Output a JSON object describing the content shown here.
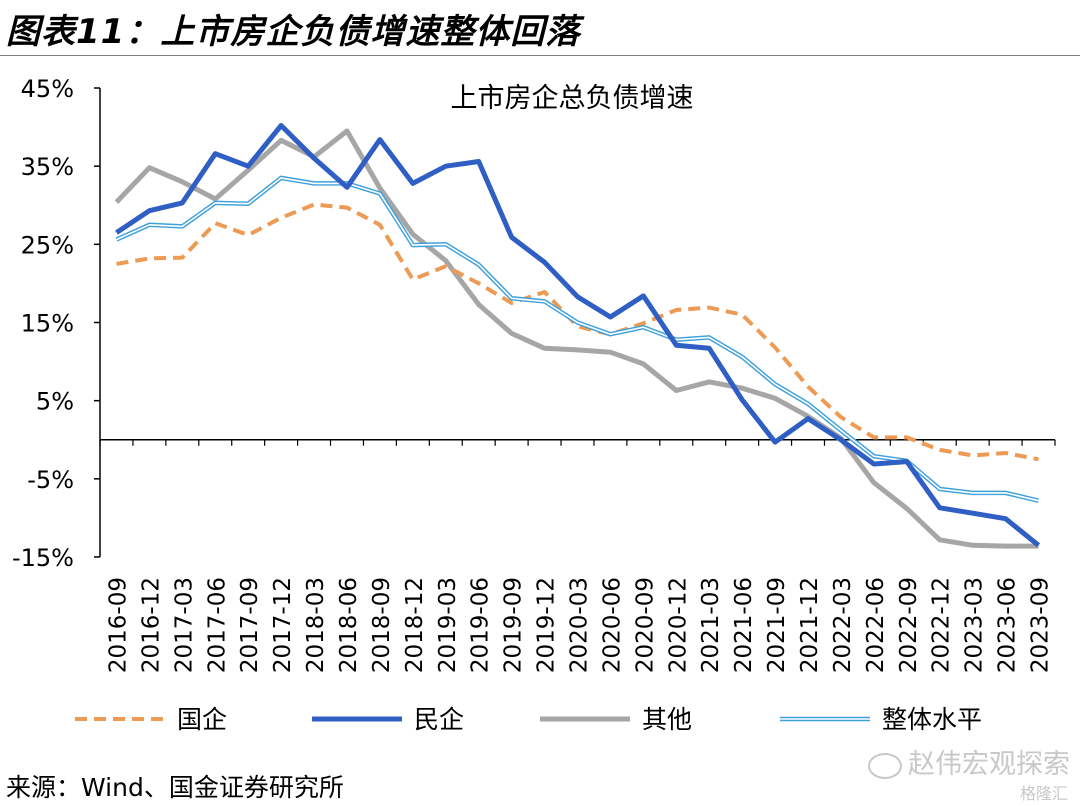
{
  "figure_title": "图表11：上市房企负债增速整体回落",
  "source": "来源：Wind、国金证券研究所",
  "watermark": "赵伟宏观探索",
  "watermark_logo": "格隆汇",
  "chart_data": {
    "type": "line",
    "title": "上市房企总负债增速",
    "xlabel": "",
    "ylabel": "",
    "ylim": [
      -15,
      45
    ],
    "yticks": [
      "45%",
      "35%",
      "25%",
      "15%",
      "5%",
      "-5%",
      "-15%"
    ],
    "grid": false,
    "legend_position": "bottom",
    "x": [
      "2016-09",
      "2016-12",
      "2017-03",
      "2017-06",
      "2017-09",
      "2017-12",
      "2018-03",
      "2018-06",
      "2018-09",
      "2018-12",
      "2019-03",
      "2019-06",
      "2019-09",
      "2019-12",
      "2020-03",
      "2020-06",
      "2020-09",
      "2020-12",
      "2021-03",
      "2021-06",
      "2021-09",
      "2021-12",
      "2022-03",
      "2022-06",
      "2022-09",
      "2022-12",
      "2023-03",
      "2023-06",
      "2023-09"
    ],
    "series": [
      {
        "name": "国企",
        "color": "#ed9a54",
        "style": "dashed",
        "values": [
          22.5,
          23.2,
          23.3,
          27.7,
          26.2,
          28.4,
          30.1,
          29.7,
          27.5,
          20.5,
          22.2,
          20.0,
          17.5,
          18.9,
          14.5,
          13.5,
          14.9,
          16.6,
          16.9,
          16.0,
          11.8,
          6.8,
          2.9,
          0.3,
          0.3,
          -1.3,
          -2.0,
          -1.7,
          -2.5
        ]
      },
      {
        "name": "民企",
        "color": "#2f5fc4",
        "style": "solid-thick",
        "values": [
          26.5,
          29.3,
          30.3,
          36.6,
          35.0,
          40.2,
          36.0,
          32.3,
          38.4,
          32.8,
          35.0,
          35.6,
          25.9,
          22.7,
          18.3,
          15.7,
          18.4,
          12.1,
          11.7,
          5.1,
          -0.3,
          2.7,
          0.0,
          -3.1,
          -2.8,
          -8.7,
          -9.4,
          -10.1,
          -13.5
        ]
      },
      {
        "name": "其他",
        "color": "#a6a6a6",
        "style": "solid-thick",
        "values": [
          30.4,
          34.8,
          33.0,
          30.8,
          34.5,
          38.3,
          36.2,
          39.5,
          32.2,
          26.3,
          22.9,
          17.3,
          13.6,
          11.7,
          11.5,
          11.2,
          9.7,
          6.3,
          7.4,
          6.6,
          5.3,
          3.0,
          0.2,
          -5.5,
          -8.8,
          -12.8,
          -13.5,
          -13.6,
          -13.6
        ]
      },
      {
        "name": "整体水平",
        "color": "#3fa1dc",
        "style": "double",
        "values": [
          25.6,
          27.5,
          27.3,
          30.3,
          30.2,
          33.5,
          32.8,
          32.8,
          31.5,
          24.9,
          25.0,
          22.4,
          18.1,
          17.7,
          15.0,
          13.5,
          14.4,
          12.8,
          13.1,
          10.6,
          7.1,
          4.6,
          1.2,
          -2.1,
          -2.7,
          -6.3,
          -6.8,
          -6.8,
          -7.8
        ]
      }
    ]
  }
}
